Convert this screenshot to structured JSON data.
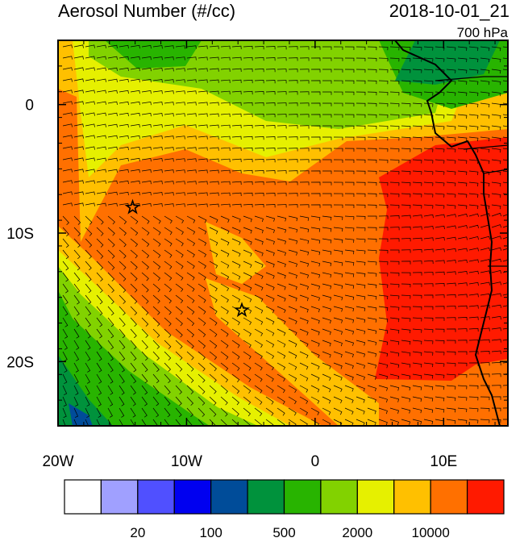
{
  "map": {
    "title": "Aerosol Number (#/cc)",
    "time": "2018-10-01_21",
    "level": "700 hPa",
    "xlim": [
      -20,
      15
    ],
    "ylim": [
      -25,
      5
    ],
    "xticks": [
      {
        "value": -20,
        "label": "20W"
      },
      {
        "value": -10,
        "label": "10W"
      },
      0,
      {
        "value": 10,
        "label": "10E"
      }
    ],
    "yticks": [
      0,
      {
        "value": -10,
        "label": "10S"
      },
      {
        "value": -20,
        "label": "20S"
      }
    ],
    "markers": [
      {
        "lon": -14.2,
        "lat": -8
      },
      {
        "lon": -5.7,
        "lat": -16
      }
    ],
    "colorbar": {
      "colors": [
        "#ffffff",
        "#a0a0ff",
        "#5050ff",
        "#0000f0",
        "#004c99",
        "#00923c",
        "#28b400",
        "#82d200",
        "#e6f000",
        "#ffc000",
        "#ff7000",
        "#ff1a00"
      ],
      "labels": [
        20,
        100,
        500,
        2000,
        10000
      ]
    }
  }
}
